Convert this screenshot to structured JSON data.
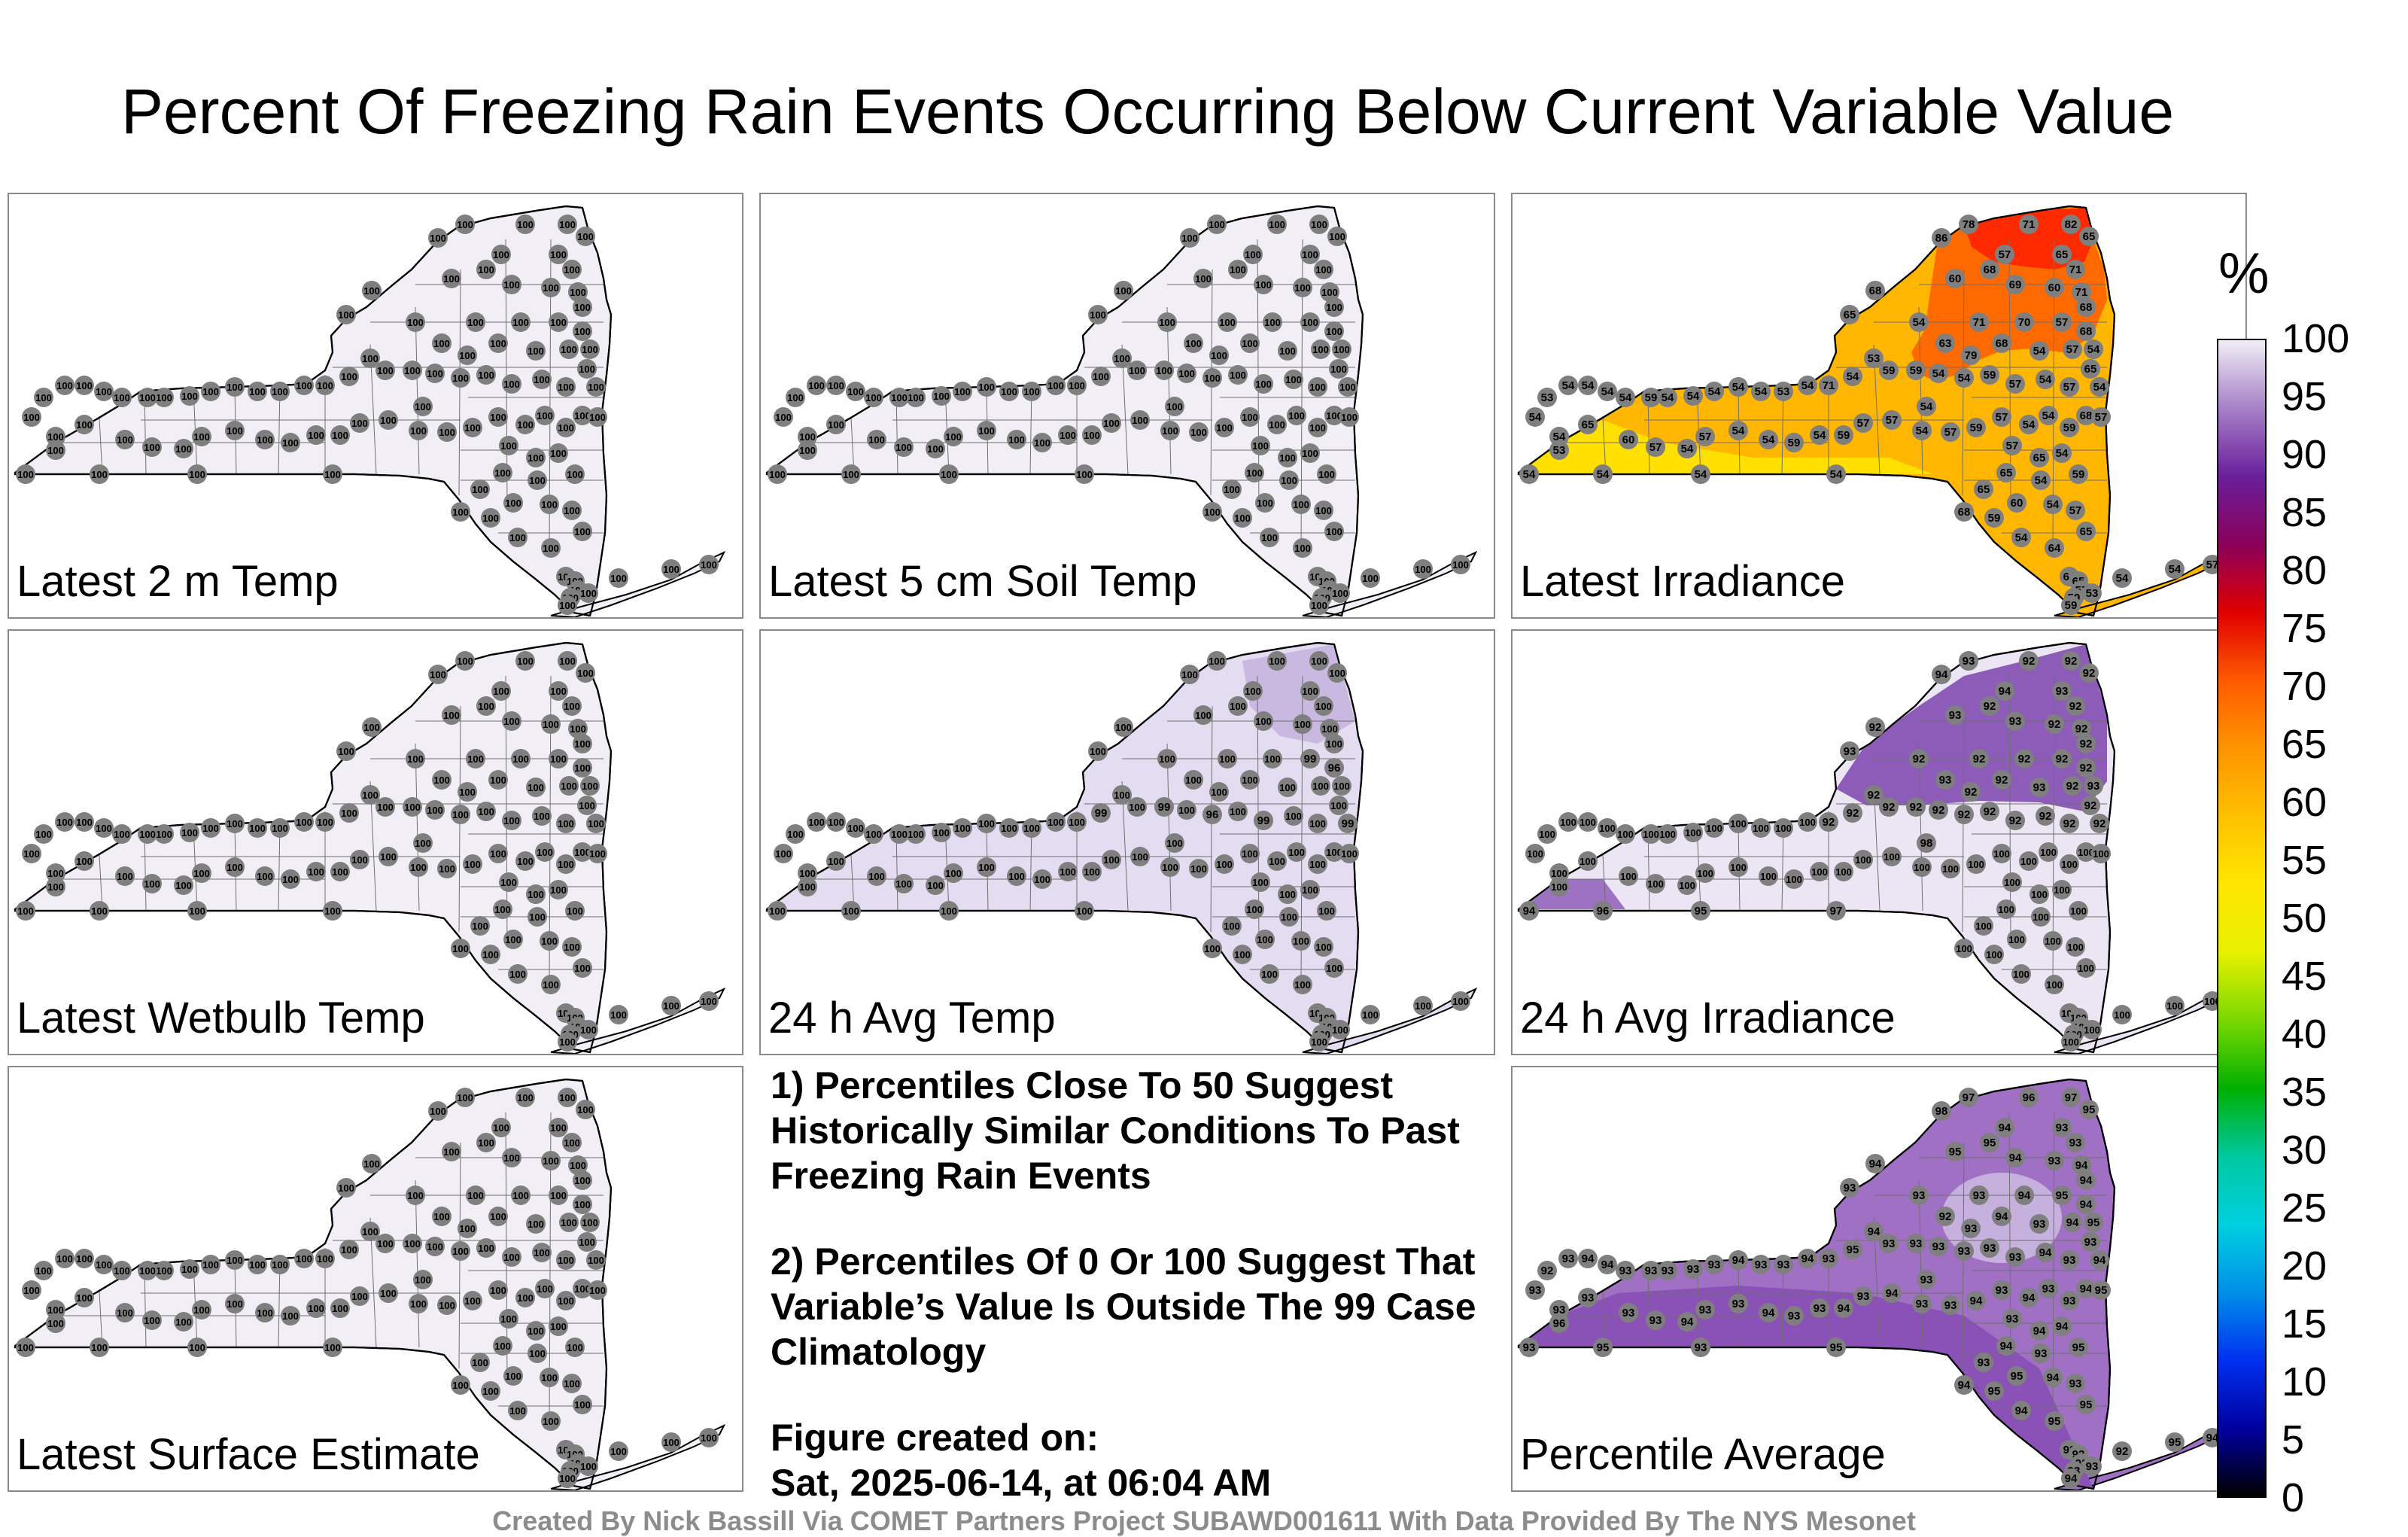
{
  "title": "Percent Of Freezing Rain Events Occurring Below Current Variable Value",
  "panels": [
    {
      "label": "Latest 2 m Temp",
      "fill": "#f1eef6",
      "mode": "uniform",
      "value": 100
    },
    {
      "label": "Latest 5 cm Soil Temp",
      "fill": "#f1eef6",
      "mode": "uniform",
      "value": 100
    },
    {
      "label": "Latest Irradiance",
      "fill": "#ffb600",
      "mode": "irradiance",
      "value": null
    },
    {
      "label": "Latest Wetbulb Temp",
      "fill": "#f1eef6",
      "mode": "uniform",
      "value": 100
    },
    {
      "label": "24 h Avg Temp",
      "fill": "#e4dcf0",
      "mode": "avgtemp",
      "value": 100
    },
    {
      "label": "24 h Avg Irradiance",
      "fill": "#ece6f4",
      "mode": "avgirr",
      "value": 100
    },
    {
      "label": "Latest Surface Estimate",
      "fill": "#f1eef6",
      "mode": "uniform",
      "value": 100
    },
    {
      "label": "Percentile Average",
      "fill": "#a070c4",
      "mode": "average",
      "value": 93
    }
  ],
  "notes": {
    "note1": "1) Percentiles Close To 50 Suggest Historically Similar Conditions To Past Freezing Rain Events",
    "note2": "2) Percentiles Of 0 Or 100 Suggest That Variable’s Value Is Outside The 99 Case Climatology",
    "created_label": "Figure created on:",
    "created_date": "Sat, 2025-06-14, at 06:04 AM"
  },
  "colorbar": {
    "unit": "%",
    "ticks": [
      "100",
      "95",
      "90",
      "85",
      "80",
      "75",
      "70",
      "65",
      "60",
      "55",
      "50",
      "45",
      "40",
      "35",
      "30",
      "25",
      "20",
      "15",
      "10",
      "5",
      "0"
    ],
    "colors": [
      "#f1eef6",
      "#a680c8",
      "#6a1f9c",
      "#8a005a",
      "#e00000",
      "#ff5a00",
      "#ff9400",
      "#ffc000",
      "#ffe600",
      "#e8f000",
      "#7ad800",
      "#00b000",
      "#00c8a0",
      "#00d0e0",
      "#0090e8",
      "#0030f0",
      "#0000a0",
      "#000000"
    ]
  },
  "footer": "Created By Nick Bassill Via COMET Partners Project SUBAWD001611 With Data Provided By The NYS Mesonet"
}
